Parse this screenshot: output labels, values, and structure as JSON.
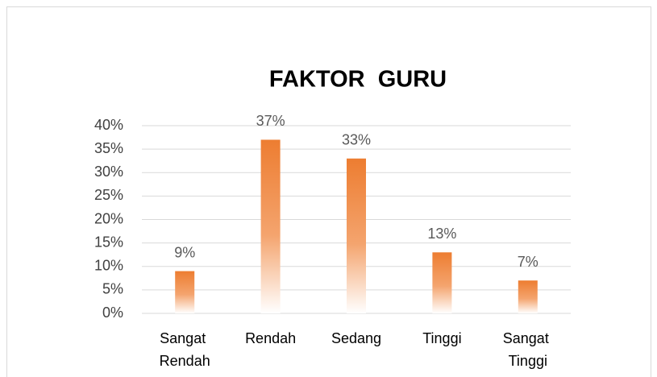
{
  "chart_data": {
    "type": "bar",
    "title": "FAKTOR  GURU",
    "categories": [
      "Sangat Rendah",
      "Rendah",
      "Sedang",
      "Tinggi",
      "Sangat Tinggi"
    ],
    "values": [
      9,
      37,
      33,
      13,
      7
    ],
    "value_labels": [
      "9%",
      "37%",
      "33%",
      "13%",
      "7%"
    ],
    "color": "#ED7D31",
    "ylim": [
      0,
      40
    ],
    "yticks": [
      {
        "value": 0,
        "label": "0%"
      },
      {
        "value": 5,
        "label": "5%"
      },
      {
        "value": 10,
        "label": "10%"
      },
      {
        "value": 15,
        "label": "15%"
      },
      {
        "value": 20,
        "label": "20%"
      },
      {
        "value": 25,
        "label": "25%"
      },
      {
        "value": 30,
        "label": "30%"
      },
      {
        "value": 35,
        "label": "35%"
      },
      {
        "value": 40,
        "label": "40%"
      }
    ],
    "grid": true
  }
}
